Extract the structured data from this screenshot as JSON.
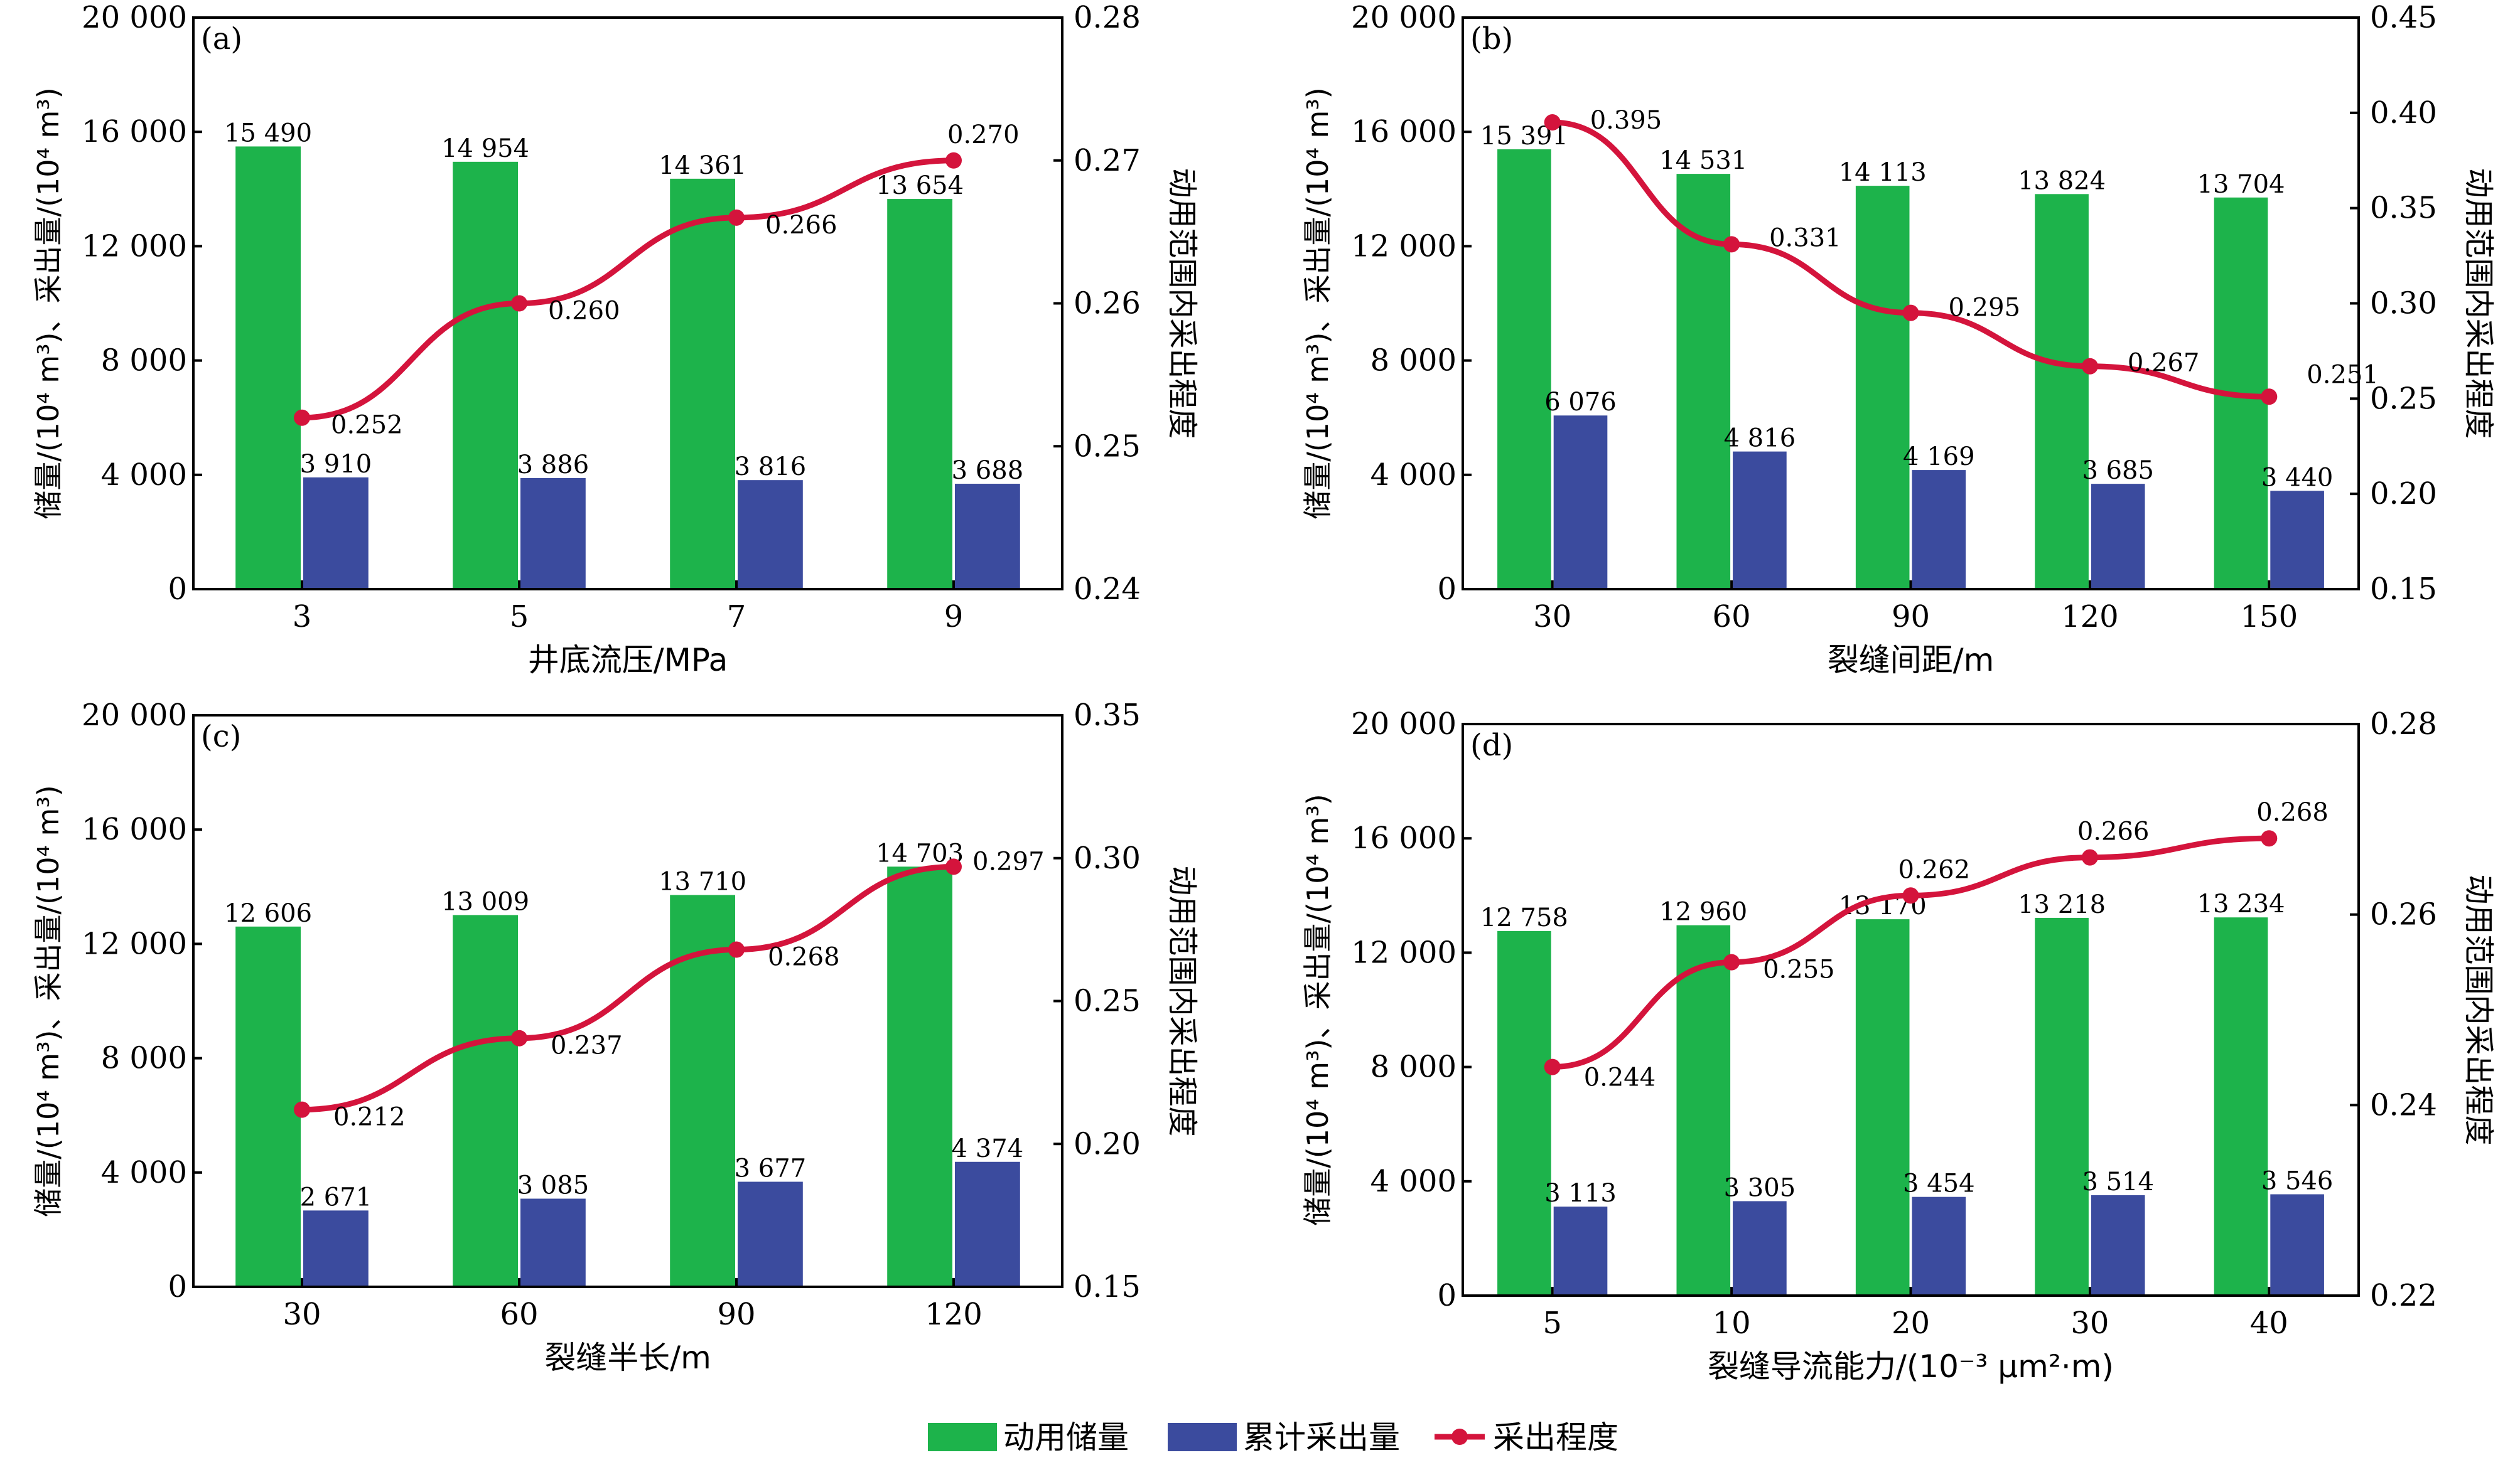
{
  "legend": {
    "items": [
      {
        "label": "动用储量",
        "kind": "bar",
        "color": "#1db34b"
      },
      {
        "label": "累计采出量",
        "kind": "bar",
        "color": "#3b4b9e"
      },
      {
        "label": "采出程度",
        "kind": "line",
        "color": "#d4143c"
      }
    ]
  },
  "colors": {
    "reserves": "#1db34b",
    "production": "#3b4b9e",
    "recovery": "#d4143c"
  },
  "chart_data": [
    {
      "type": "bar",
      "panel": "(a)",
      "xlabel": "井底流压/MPa",
      "ylabel": "储量/(10⁴ m³)、采出量/(10⁴ m³)",
      "y2label": "动用范围内采出程度",
      "categories": [
        "3",
        "5",
        "7",
        "9"
      ],
      "ylim": [
        0,
        20000
      ],
      "yticks": [
        "0",
        "4 000",
        "8 000",
        "12 000",
        "16 000",
        "20 000"
      ],
      "y2lim": [
        0.24,
        0.28
      ],
      "y2ticks": [
        "0.24",
        "0.25",
        "0.26",
        "0.27",
        "0.28"
      ],
      "series": [
        {
          "name": "动用储量",
          "kind": "bar",
          "values": [
            15490,
            14954,
            14361,
            13654
          ],
          "labels": [
            "15 490",
            "14 954",
            "14 361",
            "13 654"
          ]
        },
        {
          "name": "累计采出量",
          "kind": "bar",
          "values": [
            3910,
            3886,
            3816,
            3688
          ],
          "labels": [
            "3 910",
            "3 886",
            "3 816",
            "3 688"
          ]
        },
        {
          "name": "采出程度",
          "kind": "line",
          "axis": "right",
          "values": [
            0.252,
            0.26,
            0.266,
            0.27
          ],
          "labels": [
            "0.252",
            "0.260",
            "0.266",
            "0.270"
          ]
        }
      ]
    },
    {
      "type": "bar",
      "panel": "(b)",
      "xlabel": "裂缝间距/m",
      "ylabel": "储量/(10⁴ m³)、采出量/(10⁴ m³)",
      "y2label": "动用范围内采出程度",
      "categories": [
        "30",
        "60",
        "90",
        "120",
        "150"
      ],
      "ylim": [
        0,
        20000
      ],
      "yticks": [
        "0",
        "4 000",
        "8 000",
        "12 000",
        "16 000",
        "20 000"
      ],
      "y2lim": [
        0.15,
        0.45
      ],
      "y2ticks": [
        "0.15",
        "0.20",
        "0.25",
        "0.30",
        "0.35",
        "0.40",
        "0.45"
      ],
      "series": [
        {
          "name": "动用储量",
          "kind": "bar",
          "values": [
            15391,
            14531,
            14113,
            13824,
            13704
          ],
          "labels": [
            "15 391",
            "14 531",
            "14 113",
            "13 824",
            "13 704"
          ]
        },
        {
          "name": "累计采出量",
          "kind": "bar",
          "values": [
            6076,
            4816,
            4169,
            3685,
            3440
          ],
          "labels": [
            "6 076",
            "4 816",
            "4 169",
            "3 685",
            "3 440"
          ]
        },
        {
          "name": "采出程度",
          "kind": "line",
          "axis": "right",
          "values": [
            0.395,
            0.331,
            0.295,
            0.267,
            0.251
          ],
          "labels": [
            "0.395",
            "0.331",
            "0.295",
            "0.267",
            "0.251"
          ]
        }
      ]
    },
    {
      "type": "bar",
      "panel": "(c)",
      "xlabel": "裂缝半长/m",
      "ylabel": "储量/(10⁴ m³)、采出量/(10⁴ m³)",
      "y2label": "动用范围内采出程度",
      "categories": [
        "30",
        "60",
        "90",
        "120"
      ],
      "ylim": [
        0,
        20000
      ],
      "yticks": [
        "0",
        "4 000",
        "8 000",
        "12 000",
        "16 000",
        "20 000"
      ],
      "y2lim": [
        0.15,
        0.35
      ],
      "y2ticks": [
        "0.15",
        "0.20",
        "0.25",
        "0.30",
        "0.35"
      ],
      "series": [
        {
          "name": "动用储量",
          "kind": "bar",
          "values": [
            12606,
            13009,
            13710,
            14703
          ],
          "labels": [
            "12 606",
            "13 009",
            "13 710",
            "14 703"
          ]
        },
        {
          "name": "累计采出量",
          "kind": "bar",
          "values": [
            2671,
            3085,
            3677,
            4374
          ],
          "labels": [
            "2 671",
            "3 085",
            "3 677",
            "4 374"
          ]
        },
        {
          "name": "采出程度",
          "kind": "line",
          "axis": "right",
          "values": [
            0.212,
            0.237,
            0.268,
            0.297
          ],
          "labels": [
            "0.212",
            "0.237",
            "0.268",
            "0.297"
          ]
        }
      ]
    },
    {
      "type": "bar",
      "panel": "(d)",
      "xlabel": "裂缝导流能力/(10⁻³ μm²·m)",
      "ylabel": "储量/(10⁴ m³)、采出量/(10⁴ m³)",
      "y2label": "动用范围内采出程度",
      "categories": [
        "5",
        "10",
        "20",
        "30",
        "40"
      ],
      "ylim": [
        0,
        20000
      ],
      "yticks": [
        "0",
        "4 000",
        "8 000",
        "12 000",
        "16 000",
        "20 000"
      ],
      "y2lim": [
        0.22,
        0.28
      ],
      "y2ticks": [
        "0.22",
        "0.24",
        "0.26",
        "0.28"
      ],
      "series": [
        {
          "name": "动用储量",
          "kind": "bar",
          "values": [
            12758,
            12960,
            13170,
            13218,
            13234
          ],
          "labels": [
            "12 758",
            "12 960",
            "13 170",
            "13 218",
            "13 234"
          ]
        },
        {
          "name": "累计采出量",
          "kind": "bar",
          "values": [
            3113,
            3305,
            3454,
            3514,
            3546
          ],
          "labels": [
            "3 113",
            "3 305",
            "3 454",
            "3 514",
            "3 546"
          ]
        },
        {
          "name": "采出程度",
          "kind": "line",
          "axis": "right",
          "values": [
            0.244,
            0.255,
            0.262,
            0.266,
            0.268
          ],
          "labels": [
            "0.244",
            "0.255",
            "0.262",
            "0.266",
            "0.268"
          ]
        }
      ]
    }
  ]
}
